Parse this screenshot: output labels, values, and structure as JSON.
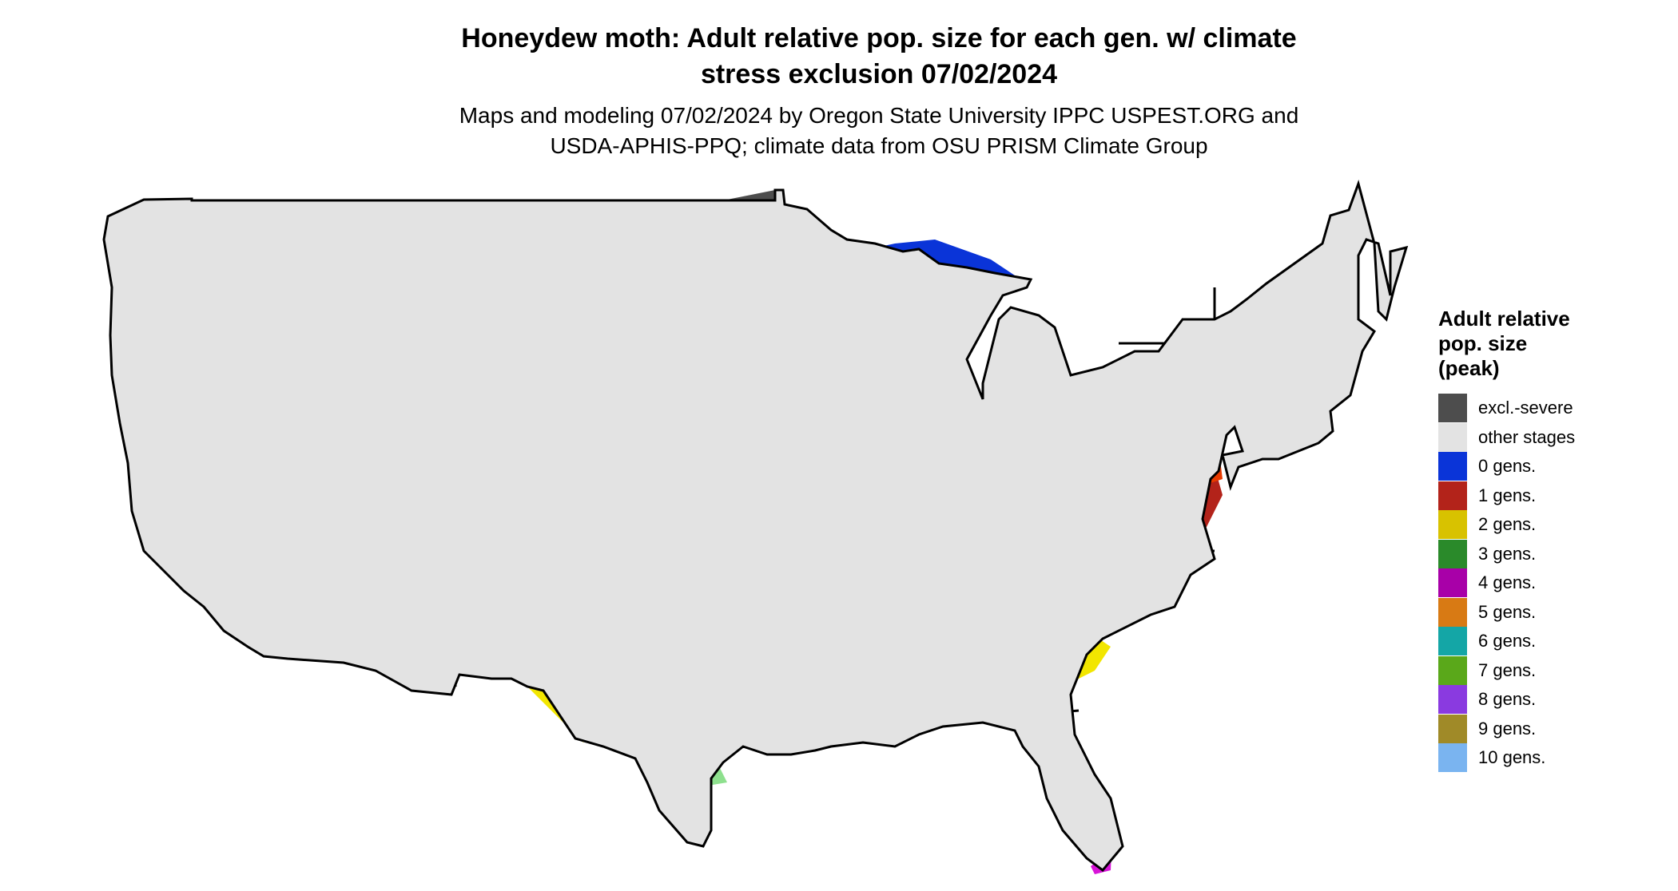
{
  "header": {
    "title_line1": "Honeydew moth: Adult relative pop. size for each gen. w/ climate",
    "title_line2": "stress exclusion 07/02/2024",
    "subtitle_line1": "Maps and modeling 07/02/2024 by Oregon State University IPPC USPEST.ORG and",
    "subtitle_line2": "USDA-APHIS-PPQ; climate data from OSU PRISM Climate Group"
  },
  "legend": {
    "title_line1": "Adult relative",
    "title_line2": "pop. size",
    "title_line3": "(peak)",
    "items": [
      {
        "label": "excl.-severe",
        "color": "#4d4d4d"
      },
      {
        "label": "other stages",
        "color": "#e3e3e3"
      },
      {
        "label": "0 gens.",
        "color": "#0a34d8"
      },
      {
        "label": "1 gens.",
        "color": "#b3231a"
      },
      {
        "label": "2 gens.",
        "color": "#d8c200"
      },
      {
        "label": "3 gens.",
        "color": "#2a8a2a"
      },
      {
        "label": "4 gens.",
        "color": "#a800a8"
      },
      {
        "label": "5 gens.",
        "color": "#d87a14"
      },
      {
        "label": "6 gens.",
        "color": "#14a6a6"
      },
      {
        "label": "7 gens.",
        "color": "#5aa81a"
      },
      {
        "label": "8 gens.",
        "color": "#8a3ae0"
      },
      {
        "label": "9 gens.",
        "color": "#a08a28"
      },
      {
        "label": "10 gens.",
        "color": "#7ab4f0"
      }
    ]
  },
  "map_colors": {
    "land": "#e3e3e3",
    "excluded": "#4d4d4d",
    "gen0": "#0a34d8",
    "gen0_light": "#1a8cff",
    "cool_cyan": "#1ab4f0",
    "gen1": "#e83a00",
    "gen1_dark": "#b3231a",
    "gen2": "#f2e600",
    "gen3": "#2a8a2a",
    "gen3_light": "#8ee08e",
    "gen4": "#d814d8",
    "border": "#000000"
  }
}
